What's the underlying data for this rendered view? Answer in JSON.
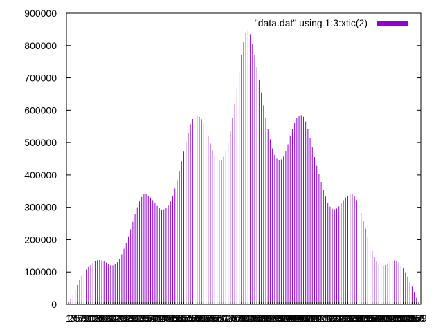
{
  "chart_data": {
    "type": "bar",
    "legend": {
      "label": "\"data.dat\" using 1:3:xtic(2)",
      "position": "top-right"
    },
    "ylim": [
      0,
      900000
    ],
    "yticks": [
      0,
      100000,
      200000,
      300000,
      400000,
      500000,
      600000,
      700000,
      800000,
      900000
    ],
    "grid": false,
    "color": "#9400d3",
    "series": [
      {
        "values": [
          8000,
          15000,
          30000,
          45000,
          60000,
          75000,
          88000,
          98000,
          108000,
          116000,
          122000,
          128000,
          133000,
          136000,
          137000,
          136000,
          133000,
          129000,
          125000,
          122000,
          121000,
          124000,
          130000,
          140000,
          155000,
          172000,
          190000,
          210000,
          232000,
          255000,
          278000,
          300000,
          318000,
          332000,
          340000,
          340000,
          336000,
          330000,
          322000,
          313000,
          304000,
          297000,
          293000,
          294000,
          298000,
          306000,
          318000,
          336000,
          358000,
          384000,
          412000,
          442000,
          472000,
          502000,
          530000,
          555000,
          573000,
          583000,
          585000,
          580000,
          572000,
          560000,
          542000,
          520000,
          497000,
          476000,
          460000,
          450000,
          445000,
          446000,
          456000,
          475000,
          502000,
          535000,
          575000,
          620000,
          668000,
          720000,
          770000,
          810000,
          838000,
          848000,
          835000,
          805000,
          770000,
          733000,
          695000,
          655000,
          615000,
          577000,
          542000,
          510000,
          482000,
          462000,
          450000,
          445000,
          448000,
          457000,
          473000,
          495000,
          520000,
          542000,
          560000,
          575000,
          583000,
          585000,
          580000,
          565000,
          542000,
          515000,
          485000,
          455000,
          428000,
          402000,
          378000,
          355000,
          333000,
          314000,
          302000,
          296000,
          294000,
          296000,
          303000,
          312000,
          322000,
          330000,
          336000,
          340000,
          340000,
          334000,
          322000,
          305000,
          282000,
          258000,
          234000,
          210000,
          187000,
          165000,
          146000,
          132000,
          124000,
          120000,
          120000,
          122000,
          127000,
          132000,
          135000,
          136000,
          134000,
          129000,
          121000,
          111000,
          99000,
          86000,
          70000,
          55000,
          38000,
          20000,
          8000
        ]
      }
    ]
  }
}
